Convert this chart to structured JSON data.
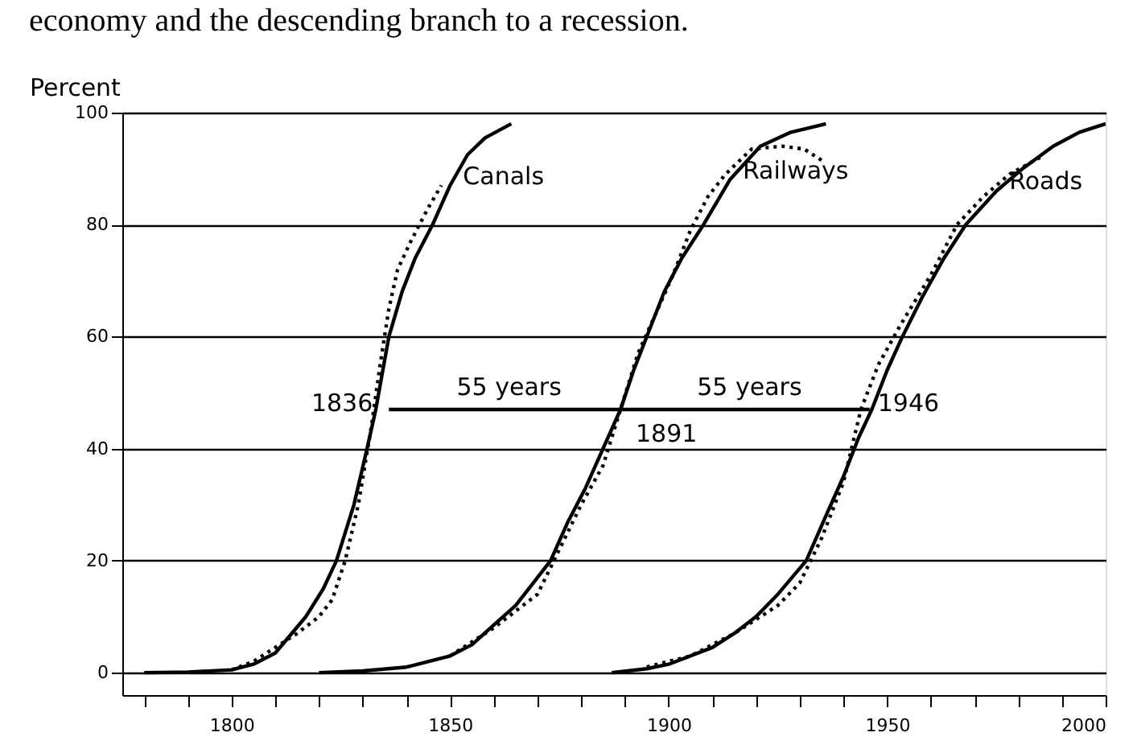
{
  "chart_data": {
    "type": "line",
    "title": "economy and the descending branch to a recession.",
    "ylabel": "Percent",
    "xlim": [
      1775,
      2000
    ],
    "ylim": [
      -4,
      100
    ],
    "xticks": [
      {
        "value": 1780,
        "label": null
      },
      {
        "value": 1790,
        "label": null
      },
      1800,
      {
        "value": 1810,
        "label": null
      },
      {
        "value": 1820,
        "label": null
      },
      {
        "value": 1830,
        "label": null
      },
      {
        "value": 1840,
        "label": null
      },
      1850,
      {
        "value": 1860,
        "label": null
      },
      {
        "value": 1870,
        "label": null
      },
      {
        "value": 1880,
        "label": null
      },
      {
        "value": 1890,
        "label": null
      },
      1900,
      {
        "value": 1910,
        "label": null
      },
      {
        "value": 1920,
        "label": null
      },
      {
        "value": 1930,
        "label": null
      },
      {
        "value": 1940,
        "label": null
      },
      1950,
      {
        "value": 1960,
        "label": null
      },
      {
        "value": 1970,
        "label": null
      },
      {
        "value": 1980,
        "label": null
      },
      {
        "value": 1990,
        "label": null
      },
      2000
    ],
    "yticks": [
      0,
      20,
      40,
      60,
      80,
      100
    ],
    "grid": "y",
    "marker": "none",
    "series": [
      {
        "name": "Canals",
        "color": "#000000",
        "line_style": "solid",
        "x": [
          1780,
          1790,
          1800,
          1805,
          1810,
          1817,
          1821,
          1824,
          1828,
          1831,
          1833,
          1836,
          1839,
          1842,
          1846,
          1850,
          1854,
          1858,
          1864
        ],
        "values": [
          0,
          0.1,
          0.5,
          1.5,
          3.5,
          10,
          15,
          20,
          30,
          40,
          47,
          60,
          68,
          74,
          80,
          87,
          92.5,
          95.5,
          98
        ]
      },
      {
        "color": "#000000",
        "line_style": "dotted",
        "x": [
          1800,
          1805,
          1810,
          1815,
          1820,
          1823,
          1826,
          1829,
          1832,
          1834,
          1836,
          1838,
          1841,
          1845,
          1848
        ],
        "values": [
          0.5,
          2,
          4.5,
          7,
          10,
          13,
          20,
          30,
          44,
          55,
          65,
          72,
          77,
          83,
          87
        ]
      },
      {
        "name": "Railways",
        "color": "#000000",
        "line_style": "solid",
        "x": [
          1820,
          1830,
          1840,
          1850,
          1855,
          1860,
          1865,
          1870,
          1873,
          1877,
          1881,
          1885,
          1889,
          1892,
          1895,
          1899,
          1903,
          1908,
          1914,
          1921,
          1928,
          1936
        ],
        "values": [
          0,
          0.3,
          1,
          3,
          5,
          8.5,
          12,
          17,
          20,
          27,
          33,
          40,
          47,
          54,
          60,
          68,
          74,
          80,
          88,
          94,
          96.5,
          98
        ]
      },
      {
        "color": "#000000",
        "line_style": "dotted",
        "x": [
          1850,
          1860,
          1870,
          1875,
          1880,
          1885,
          1889,
          1893,
          1897,
          1901,
          1905,
          1909,
          1913,
          1919,
          1926,
          1931,
          1935
        ],
        "values": [
          3,
          8,
          14,
          22,
          30,
          37,
          47,
          57,
          64,
          71,
          79,
          85,
          89,
          93.5,
          94,
          93.5,
          91.5
        ]
      },
      {
        "name": "Roads",
        "color": "#000000",
        "line_style": "solid",
        "x": [
          1887,
          1895,
          1900,
          1910,
          1915,
          1920,
          1925,
          1931.5,
          1936,
          1940,
          1943.5,
          1946.5,
          1950,
          1953.5,
          1958,
          1963,
          1968,
          1975,
          1981,
          1988,
          1994,
          2000
        ],
        "values": [
          0,
          0.7,
          1.5,
          4.5,
          7,
          10,
          14,
          20,
          28,
          35,
          42,
          47,
          54,
          60,
          67,
          74,
          80,
          86,
          90,
          94,
          96.5,
          98
        ]
      },
      {
        "color": "#000000",
        "line_style": "dotted",
        "x": [
          1895,
          1905,
          1915,
          1925,
          1930,
          1935,
          1940,
          1944,
          1948,
          1953,
          1960,
          1966,
          1972,
          1978,
          1985
        ],
        "values": [
          1,
          3,
          7,
          12,
          16,
          24,
          34,
          47,
          55,
          62,
          71,
          80,
          85,
          89,
          92
        ]
      },
      {
        "type": "line",
        "color": "#000000",
        "line_style": "solid",
        "x": [
          1836,
          1891,
          1946
        ],
        "values": [
          47,
          47,
          47
        ]
      }
    ],
    "annotations": [
      {
        "text": "1836",
        "x": 1836,
        "y": 47
      },
      {
        "text": "1891",
        "x": 1891,
        "y": 47
      },
      {
        "text": "1946",
        "x": 1946,
        "y": 47
      },
      "55 years",
      "55 years"
    ]
  }
}
